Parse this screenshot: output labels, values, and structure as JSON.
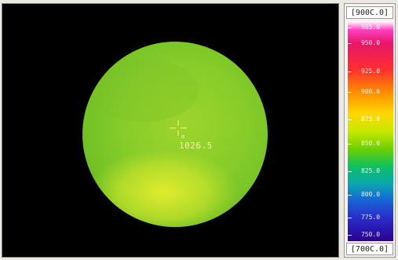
{
  "thermal_view": {
    "spot_temperature": "1026.5",
    "spot_marker_label": "m"
  },
  "scale": {
    "max_label": "[900C.0]",
    "min_label": "[700C.0]",
    "ticks": [
      "985.0",
      "950.0",
      "925.0",
      "900.0",
      "875.0",
      "850.0",
      "825.0",
      "800.0",
      "775.0",
      "750.0"
    ]
  }
}
